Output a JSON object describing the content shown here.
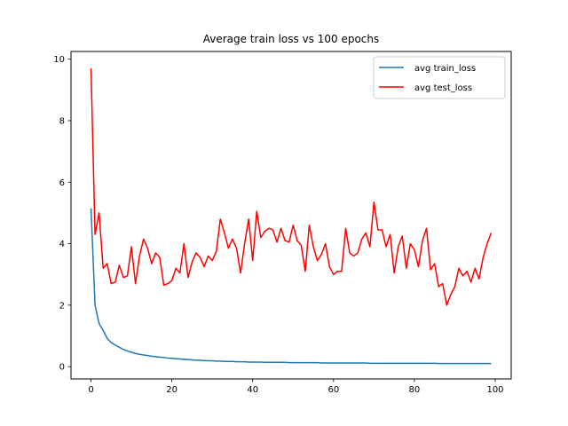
{
  "chart_data": {
    "type": "line",
    "title": "Average train loss vs 100 epochs",
    "xlabel": "",
    "ylabel": "",
    "xlim": [
      -4.95,
      103.95
    ],
    "ylim": [
      -0.4,
      10.25
    ],
    "xticks": [
      0,
      20,
      40,
      60,
      80,
      100
    ],
    "yticks": [
      0,
      2,
      4,
      6,
      8,
      10
    ],
    "grid": false,
    "legend_position": "top-right",
    "series": [
      {
        "name": "avg train_loss",
        "color": "#1f77b4",
        "values": [
          5.15,
          2.0,
          1.4,
          1.18,
          0.92,
          0.78,
          0.7,
          0.63,
          0.56,
          0.51,
          0.47,
          0.43,
          0.4,
          0.38,
          0.36,
          0.34,
          0.32,
          0.31,
          0.3,
          0.28,
          0.27,
          0.26,
          0.25,
          0.24,
          0.23,
          0.22,
          0.21,
          0.21,
          0.2,
          0.19,
          0.19,
          0.18,
          0.18,
          0.17,
          0.17,
          0.17,
          0.16,
          0.16,
          0.16,
          0.15,
          0.15,
          0.15,
          0.15,
          0.14,
          0.14,
          0.14,
          0.14,
          0.14,
          0.14,
          0.13,
          0.13,
          0.13,
          0.13,
          0.13,
          0.13,
          0.13,
          0.13,
          0.12,
          0.12,
          0.12,
          0.12,
          0.12,
          0.12,
          0.12,
          0.12,
          0.12,
          0.12,
          0.12,
          0.12,
          0.11,
          0.11,
          0.11,
          0.11,
          0.11,
          0.11,
          0.11,
          0.11,
          0.11,
          0.11,
          0.11,
          0.11,
          0.11,
          0.11,
          0.11,
          0.11,
          0.11,
          0.1,
          0.1,
          0.1,
          0.1,
          0.1,
          0.1,
          0.1,
          0.1,
          0.1,
          0.1,
          0.1,
          0.1,
          0.1,
          0.1
        ]
      },
      {
        "name": "avg test_loss",
        "color": "#ff0000",
        "values": [
          9.7,
          4.3,
          5.0,
          3.2,
          3.35,
          2.7,
          2.75,
          3.3,
          2.9,
          2.95,
          3.9,
          2.7,
          3.6,
          4.15,
          3.85,
          3.35,
          3.7,
          3.55,
          2.65,
          2.7,
          2.8,
          3.2,
          3.05,
          4.0,
          2.9,
          3.4,
          3.7,
          3.55,
          3.25,
          3.6,
          3.45,
          3.75,
          4.8,
          4.35,
          3.85,
          4.15,
          3.85,
          3.05,
          4.0,
          4.8,
          3.45,
          5.05,
          4.2,
          4.4,
          4.5,
          4.45,
          4.05,
          4.5,
          4.1,
          4.05,
          4.6,
          4.1,
          3.95,
          3.1,
          4.6,
          3.9,
          3.45,
          3.65,
          4.0,
          3.25,
          3.0,
          3.1,
          3.1,
          4.5,
          3.7,
          3.6,
          3.7,
          4.15,
          4.35,
          3.9,
          5.35,
          4.45,
          4.45,
          3.9,
          4.3,
          3.05,
          3.9,
          4.25,
          3.2,
          4.0,
          3.8,
          3.25,
          4.1,
          4.5,
          3.15,
          3.35,
          2.6,
          2.7,
          2.0,
          2.35,
          2.6,
          3.2,
          2.95,
          3.1,
          2.75,
          3.2,
          2.85,
          3.55,
          4.0,
          4.35
        ]
      }
    ]
  }
}
